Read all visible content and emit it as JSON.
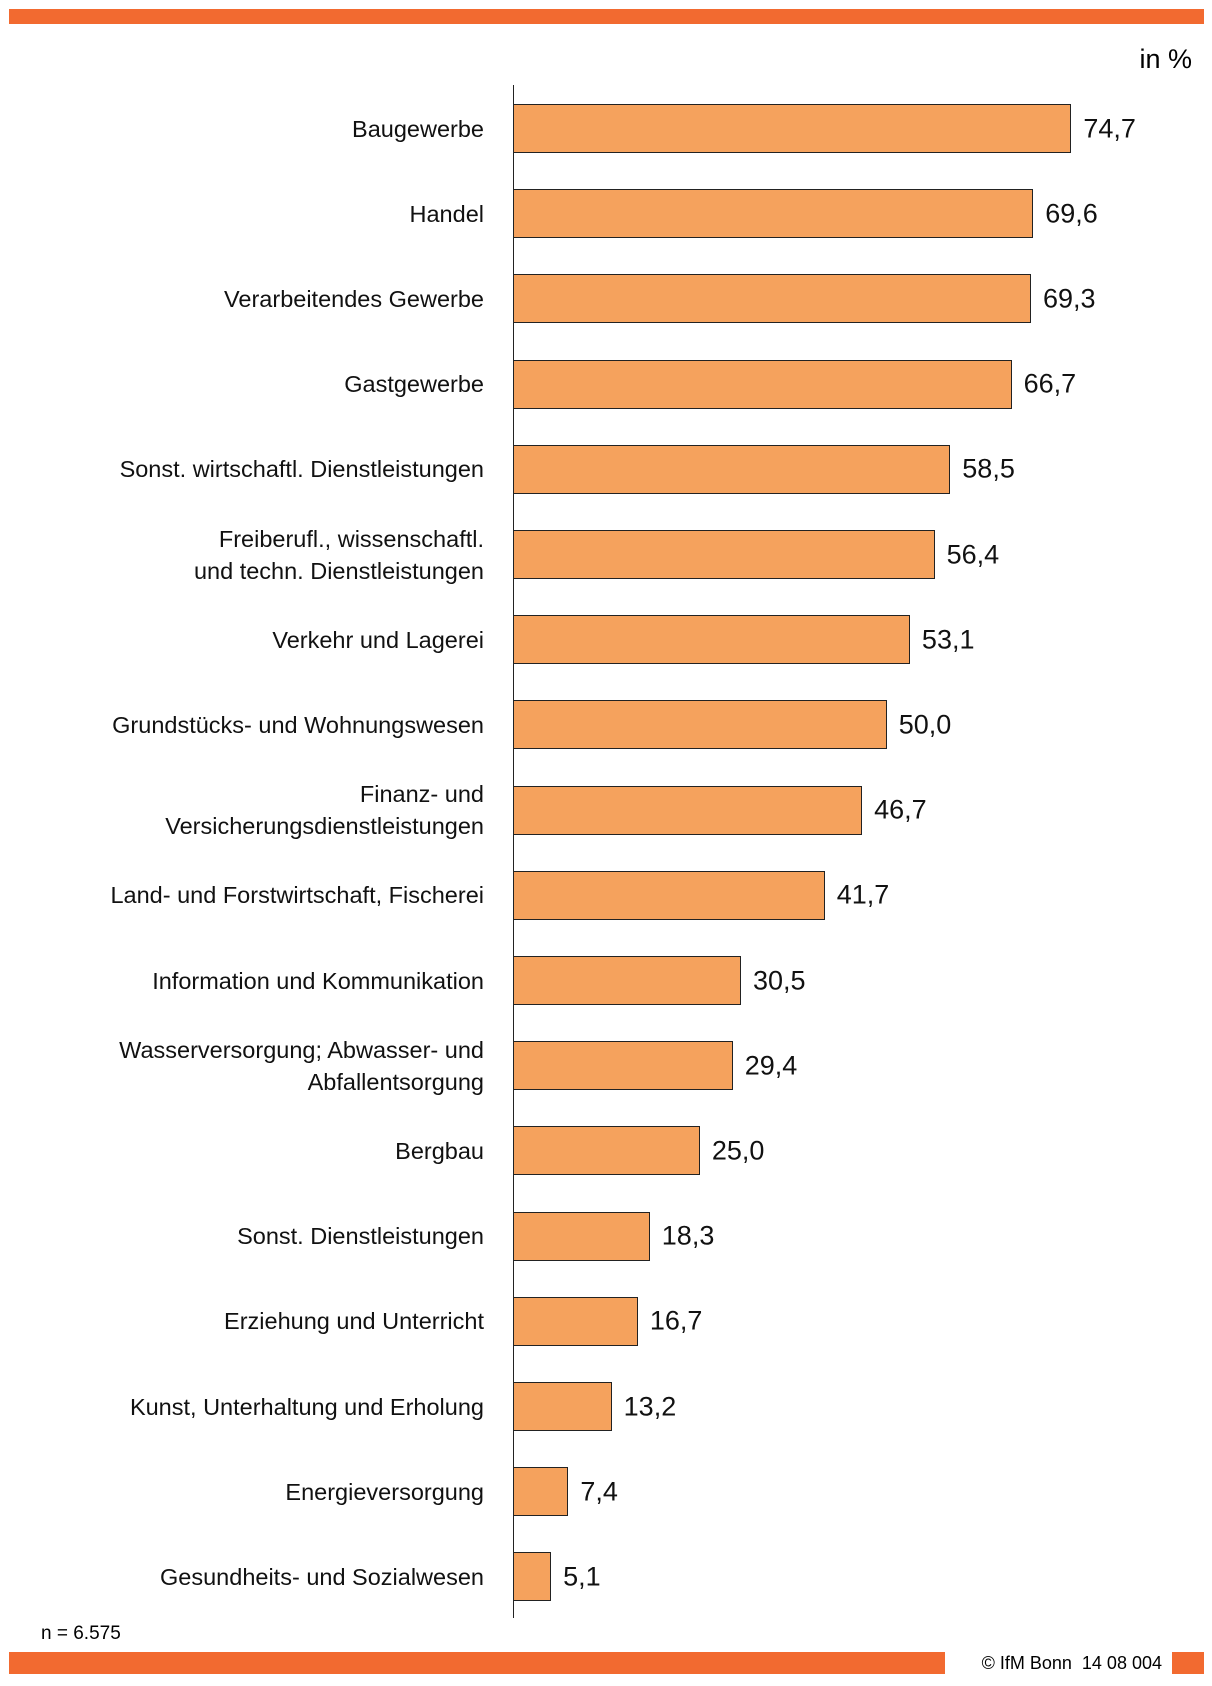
{
  "chart_data": {
    "type": "bar",
    "orientation": "horizontal",
    "unit_label": "in %",
    "categories": [
      "Baugewerbe",
      "Handel",
      "Verarbeitendes Gewerbe",
      "Gastgewerbe",
      "Sonst. wirtschaftl. Dienstleistungen",
      "Freiberufl., wissenschaftl.\nund techn. Dienstleistungen",
      "Verkehr und Lagerei",
      "Grundstücks- und Wohnungswesen",
      "Finanz- und\nVersicherungsdienstleistungen",
      "Land- und Forstwirtschaft, Fischerei",
      "Information und Kommunikation",
      "Wasserversorgung; Abwasser- und\nAbfallentsorgung",
      "Bergbau",
      "Sonst. Dienstleistungen",
      "Erziehung und Unterricht",
      "Kunst, Unterhaltung und Erholung",
      "Energieversorgung",
      "Gesundheits- und Sozialwesen"
    ],
    "values": [
      74.7,
      69.6,
      69.3,
      66.7,
      58.5,
      56.4,
      53.1,
      50.0,
      46.7,
      41.7,
      30.5,
      29.4,
      25.0,
      18.3,
      16.7,
      13.2,
      7.4,
      5.1
    ],
    "value_labels": [
      "74,7",
      "69,6",
      "69,3",
      "66,7",
      "58,5",
      "56,4",
      "53,1",
      "50,0",
      "46,7",
      "41,7",
      "30,5",
      "29,4",
      "25,0",
      "18,3",
      "16,7",
      "13,2",
      "7,4",
      "5,1"
    ],
    "color": "#f5a25d",
    "xlim": [
      0,
      80
    ],
    "note": "n = 6.575",
    "footer": "© IfM Bonn  14 08 004"
  }
}
